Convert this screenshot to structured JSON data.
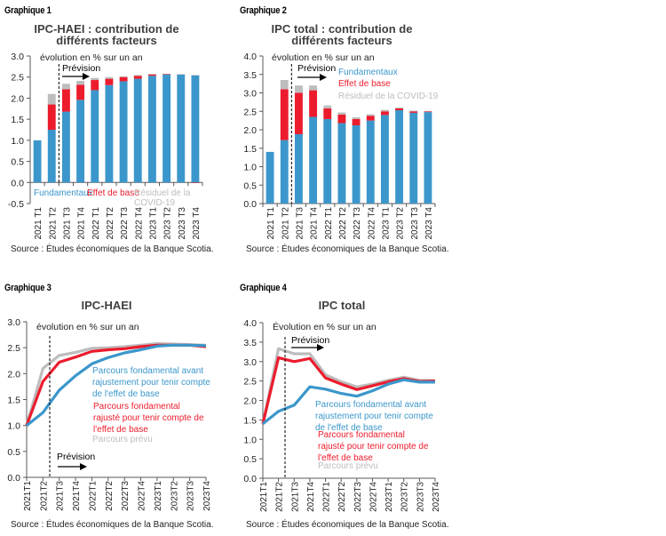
{
  "colors": {
    "fundamental": "#3b97cb",
    "base": "#ec1c2d",
    "residual": "#bdbdbd",
    "axis": "#595959",
    "title": "#404040"
  },
  "source": "Source : Études économiques de la Banque Scotia.",
  "chart_data": [
    {
      "label": "Graphique 1",
      "type": "bar",
      "stacked": true,
      "title": [
        "IPC-HAEI : contribution de",
        "différents facteurs"
      ],
      "ylabel": "évolution en % sur un an",
      "ylim": [
        -0.5,
        3.0
      ],
      "ytick_step": 0.5,
      "forecast_label": "Prévision",
      "categories": [
        "2021 T1",
        "2021 T2",
        "2021 T3",
        "2021 T4",
        "2022 T1",
        "2022 T2",
        "2022 T3",
        "2022 T4",
        "2023 T1",
        "2023 T2",
        "2023 T3",
        "2023 T4"
      ],
      "series": [
        {
          "name": "Fundamentaux",
          "color_key": "fundamental",
          "values": [
            1.0,
            1.25,
            1.68,
            1.96,
            2.19,
            2.31,
            2.4,
            2.46,
            2.53,
            2.56,
            2.56,
            2.54
          ]
        },
        {
          "name": "Effet de base",
          "color_key": "base",
          "values": [
            0,
            0.6,
            0.53,
            0.36,
            0.24,
            0.15,
            0.1,
            0.07,
            0.03,
            0.01,
            0.0,
            -0.01
          ]
        },
        {
          "name": "Résiduel de la COVID-19",
          "legend_lines": [
            "Résiduel de la",
            "COVID-19"
          ],
          "color_key": "residual",
          "values": [
            0,
            0.25,
            0.13,
            0.09,
            0.05,
            0.04,
            0.02,
            0.02,
            0.02,
            0.01,
            0.01,
            0.01
          ]
        }
      ]
    },
    {
      "label": "Graphique 2",
      "type": "bar",
      "stacked": true,
      "title": [
        "IPC total : contribution de",
        "différents facteurs"
      ],
      "ylabel": "évolution en % sur un an",
      "ylim": [
        0,
        4.0
      ],
      "ytick_step": 0.5,
      "forecast_label": "Prévision",
      "categories": [
        "2021 T1",
        "2021 T2",
        "2021 T3",
        "2021 T4",
        "2022 T1",
        "2022 T2",
        "2022 T3",
        "2022 T4",
        "2023 T1",
        "2023 T2",
        "2023 T3",
        "2023 T4"
      ],
      "series": [
        {
          "name": "Fundamentaux",
          "color_key": "fundamental",
          "values": [
            1.4,
            1.72,
            1.88,
            2.35,
            2.29,
            2.18,
            2.12,
            2.25,
            2.4,
            2.53,
            2.46,
            2.48
          ]
        },
        {
          "name": "Effet de base",
          "color_key": "base",
          "values": [
            0,
            1.38,
            1.12,
            0.72,
            0.29,
            0.23,
            0.17,
            0.13,
            0.1,
            0.05,
            0.04,
            0.02
          ]
        },
        {
          "name": "Résiduel de la COVID-19",
          "legend_lines": [
            "Résiduel de la COVID-19"
          ],
          "color_key": "residual",
          "values": [
            0,
            0.25,
            0.2,
            0.13,
            0.08,
            0.06,
            0.05,
            0.04,
            0.04,
            0.02,
            0.02,
            0.01
          ]
        }
      ]
    },
    {
      "label": "Graphique 3",
      "type": "line",
      "title": [
        "IPC-HAEI"
      ],
      "ylabel": "évolution en % sur un an",
      "ylim": [
        0,
        3.0
      ],
      "ytick_step": 0.5,
      "forecast_label": "Prévision",
      "categories": [
        "2021T1",
        "2021T2",
        "2021T3",
        "2021T4",
        "2022T1",
        "2022T2",
        "2022T3",
        "2022T4",
        "2023T1",
        "2023T2",
        "2023T3",
        "2023T4"
      ],
      "series": [
        {
          "name": "Parcours prévu",
          "legend_lines": [
            "Parcours prévu"
          ],
          "color_key": "residual",
          "values": [
            1.0,
            2.1,
            2.35,
            2.41,
            2.49,
            2.5,
            2.52,
            2.55,
            2.58,
            2.57,
            2.56,
            2.55
          ]
        },
        {
          "name": "Parcours fondamental rajusté pour tenir compte de l'effet de base",
          "legend_lines": [
            "Parcours fondamental",
            "rajusté pour tenir compte de",
            "l'effet de base"
          ],
          "color_key": "base",
          "values": [
            1.0,
            1.85,
            2.22,
            2.32,
            2.43,
            2.46,
            2.48,
            2.52,
            2.55,
            2.55,
            2.55,
            2.52
          ]
        },
        {
          "name": "Parcours fondamental avant rajustement pour tenir compte de l'effet de base",
          "legend_lines": [
            "Parcours fondamental avant",
            "rajustement pour tenir compte",
            "de l'effet de base"
          ],
          "color_key": "fundamental",
          "values": [
            1.0,
            1.25,
            1.68,
            1.96,
            2.19,
            2.31,
            2.4,
            2.46,
            2.53,
            2.55,
            2.55,
            2.54
          ]
        }
      ]
    },
    {
      "label": "Graphique 4",
      "type": "line",
      "title": [
        "IPC total"
      ],
      "ylabel": "Évolution en % sur un an",
      "ylim": [
        0,
        4.0
      ],
      "ytick_step": 0.5,
      "forecast_label": "Prévision",
      "categories": [
        "2021T1",
        "2021T2",
        "2021T3",
        "2021T4",
        "2022T1",
        "2022T2",
        "2022T3",
        "2022T4",
        "2023T1",
        "2023T2",
        "2023T3",
        "2023T4"
      ],
      "series": [
        {
          "name": "Parcours prévu",
          "legend_lines": [
            "Parcours prévu"
          ],
          "color_key": "residual",
          "values": [
            1.4,
            3.33,
            3.2,
            3.2,
            2.66,
            2.48,
            2.35,
            2.42,
            2.52,
            2.6,
            2.52,
            2.51
          ]
        },
        {
          "name": "Parcours fondamental rajusté pour tenir compte de l'effet de base",
          "legend_lines": [
            "Parcours fondamental",
            "rajusté pour tenir compte de",
            "l'effet de base"
          ],
          "color_key": "base",
          "values": [
            1.4,
            3.1,
            3.0,
            3.08,
            2.58,
            2.42,
            2.28,
            2.38,
            2.48,
            2.56,
            2.49,
            2.5
          ]
        },
        {
          "name": "Parcours fondamental avant rajustement pour tenir compte de l'effet de base",
          "legend_lines": [
            "Parcours fondamental avant",
            "rajustement pour tenir compte",
            "de l'effet de base"
          ],
          "color_key": "fundamental",
          "values": [
            1.4,
            1.72,
            1.88,
            2.35,
            2.29,
            2.18,
            2.11,
            2.25,
            2.42,
            2.53,
            2.47,
            2.47
          ]
        }
      ]
    }
  ]
}
